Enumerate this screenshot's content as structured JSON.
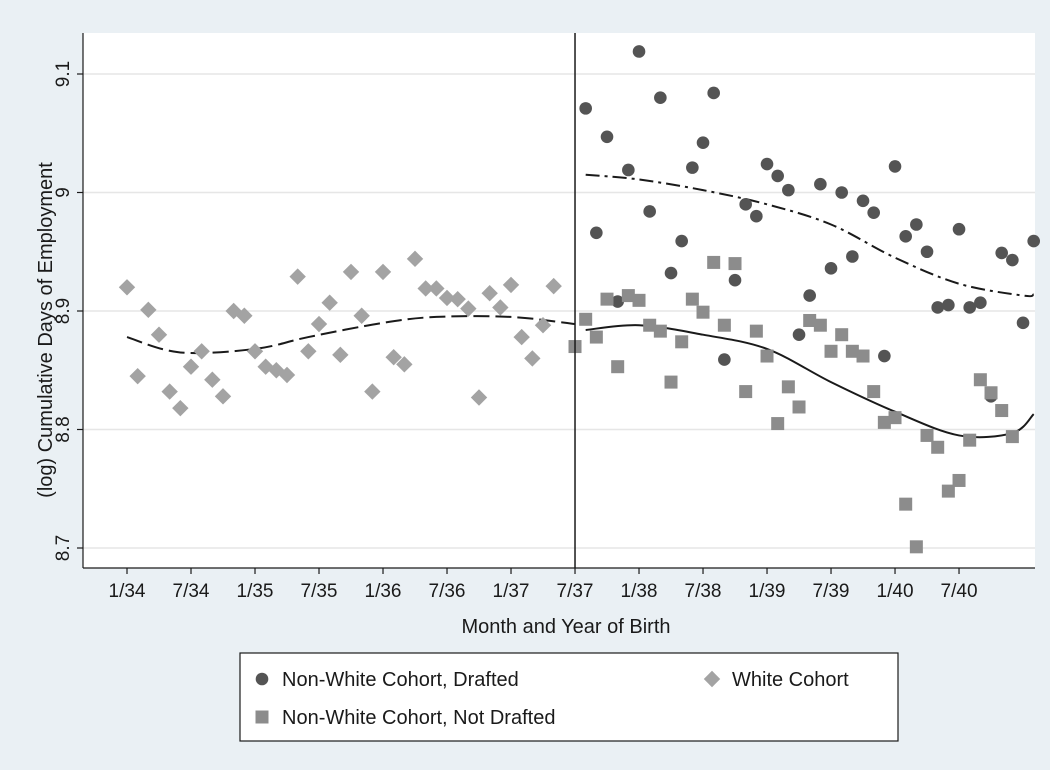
{
  "chart_data": {
    "type": "scatter",
    "xlabel": "Month and Year of Birth",
    "ylabel": "(log) Cumulative Days of Employment",
    "x_ticks": [
      "1/34",
      "7/34",
      "1/35",
      "7/35",
      "1/36",
      "7/36",
      "1/37",
      "7/37",
      "1/38",
      "7/38",
      "1/39",
      "7/39",
      "1/40",
      "7/40"
    ],
    "y_ticks": [
      "8.7",
      "8.8",
      "8.9",
      "9",
      "9.1"
    ],
    "ylim": [
      8.69,
      9.13
    ],
    "xlim": [
      "1933-12",
      "1941-03"
    ],
    "grid": true,
    "cutoff_line": "1937-07",
    "legend_position": "bottom",
    "series": [
      {
        "name": "Non-White Cohort, Drafted",
        "marker": "circle",
        "color": "#545454",
        "points": [
          [
            "1937-08",
            9.071
          ],
          [
            "1937-09",
            8.966
          ],
          [
            "1937-10",
            9.047
          ],
          [
            "1937-11",
            8.908
          ],
          [
            "1937-12",
            9.019
          ],
          [
            "1938-01",
            9.119
          ],
          [
            "1938-02",
            8.984
          ],
          [
            "1938-03",
            9.08
          ],
          [
            "1938-04",
            8.932
          ],
          [
            "1938-05",
            8.959
          ],
          [
            "1938-06",
            9.021
          ],
          [
            "1938-07",
            9.042
          ],
          [
            "1938-08",
            9.084
          ],
          [
            "1938-09",
            8.859
          ],
          [
            "1938-10",
            8.926
          ],
          [
            "1938-11",
            8.99
          ],
          [
            "1938-12",
            8.98
          ],
          [
            "1939-01",
            9.024
          ],
          [
            "1939-02",
            9.014
          ],
          [
            "1939-03",
            9.002
          ],
          [
            "1939-04",
            8.88
          ],
          [
            "1939-05",
            8.913
          ],
          [
            "1939-06",
            9.007
          ],
          [
            "1939-07",
            8.936
          ],
          [
            "1939-08",
            9.0
          ],
          [
            "1939-09",
            8.946
          ],
          [
            "1939-10",
            8.993
          ],
          [
            "1939-11",
            8.983
          ],
          [
            "1939-12",
            8.862
          ],
          [
            "1940-01",
            9.022
          ],
          [
            "1940-02",
            8.963
          ],
          [
            "1940-03",
            8.973
          ],
          [
            "1940-04",
            8.95
          ],
          [
            "1940-05",
            8.903
          ],
          [
            "1940-06",
            8.905
          ],
          [
            "1940-07",
            8.969
          ],
          [
            "1940-08",
            8.903
          ],
          [
            "1940-09",
            8.907
          ],
          [
            "1940-10",
            8.828
          ],
          [
            "1940-11",
            8.949
          ],
          [
            "1940-12",
            8.943
          ],
          [
            "1941-01",
            8.89
          ],
          [
            "1941-02",
            8.959
          ]
        ]
      },
      {
        "name": "Non-White Cohort, Not Drafted",
        "marker": "square",
        "color": "#8c8c8c",
        "points": [
          [
            "1937-07",
            8.87
          ],
          [
            "1937-08",
            8.893
          ],
          [
            "1937-09",
            8.878
          ],
          [
            "1937-10",
            8.91
          ],
          [
            "1937-11",
            8.853
          ],
          [
            "1937-12",
            8.913
          ],
          [
            "1938-01",
            8.909
          ],
          [
            "1938-02",
            8.888
          ],
          [
            "1938-03",
            8.883
          ],
          [
            "1938-04",
            8.84
          ],
          [
            "1938-05",
            8.874
          ],
          [
            "1938-06",
            8.91
          ],
          [
            "1938-07",
            8.899
          ],
          [
            "1938-08",
            8.941
          ],
          [
            "1938-09",
            8.888
          ],
          [
            "1938-10",
            8.94
          ],
          [
            "1938-11",
            8.832
          ],
          [
            "1938-12",
            8.883
          ],
          [
            "1939-01",
            8.862
          ],
          [
            "1939-02",
            8.805
          ],
          [
            "1939-03",
            8.836
          ],
          [
            "1939-04",
            8.819
          ],
          [
            "1939-05",
            8.892
          ],
          [
            "1939-06",
            8.888
          ],
          [
            "1939-07",
            8.866
          ],
          [
            "1939-08",
            8.88
          ],
          [
            "1939-09",
            8.866
          ],
          [
            "1939-10",
            8.862
          ],
          [
            "1939-11",
            8.832
          ],
          [
            "1939-12",
            8.806
          ],
          [
            "1940-01",
            8.81
          ],
          [
            "1940-02",
            8.737
          ],
          [
            "1940-03",
            8.701
          ],
          [
            "1940-04",
            8.795
          ],
          [
            "1940-05",
            8.785
          ],
          [
            "1940-06",
            8.748
          ],
          [
            "1940-07",
            8.757
          ],
          [
            "1940-08",
            8.791
          ],
          [
            "1940-09",
            8.842
          ],
          [
            "1940-10",
            8.831
          ],
          [
            "1940-11",
            8.816
          ],
          [
            "1940-12",
            8.794
          ]
        ]
      },
      {
        "name": "White Cohort",
        "marker": "diamond",
        "color": "#a3a3a3",
        "points": [
          [
            "1934-01",
            8.92
          ],
          [
            "1934-02",
            8.845
          ],
          [
            "1934-03",
            8.901
          ],
          [
            "1934-04",
            8.88
          ],
          [
            "1934-05",
            8.832
          ],
          [
            "1934-06",
            8.818
          ],
          [
            "1934-07",
            8.853
          ],
          [
            "1934-08",
            8.866
          ],
          [
            "1934-09",
            8.842
          ],
          [
            "1934-10",
            8.828
          ],
          [
            "1934-11",
            8.9
          ],
          [
            "1934-12",
            8.896
          ],
          [
            "1935-01",
            8.866
          ],
          [
            "1935-02",
            8.853
          ],
          [
            "1935-03",
            8.85
          ],
          [
            "1935-04",
            8.846
          ],
          [
            "1935-05",
            8.929
          ],
          [
            "1935-06",
            8.866
          ],
          [
            "1935-07",
            8.889
          ],
          [
            "1935-08",
            8.907
          ],
          [
            "1935-09",
            8.863
          ],
          [
            "1935-10",
            8.933
          ],
          [
            "1935-11",
            8.896
          ],
          [
            "1935-12",
            8.832
          ],
          [
            "1936-01",
            8.933
          ],
          [
            "1936-02",
            8.861
          ],
          [
            "1936-03",
            8.855
          ],
          [
            "1936-04",
            8.944
          ],
          [
            "1936-05",
            8.919
          ],
          [
            "1936-06",
            8.919
          ],
          [
            "1936-07",
            8.911
          ],
          [
            "1936-08",
            8.91
          ],
          [
            "1936-09",
            8.902
          ],
          [
            "1936-10",
            8.827
          ],
          [
            "1936-11",
            8.915
          ],
          [
            "1936-12",
            8.903
          ],
          [
            "1937-01",
            8.922
          ],
          [
            "1937-02",
            8.878
          ],
          [
            "1937-03",
            8.86
          ],
          [
            "1937-04",
            8.888
          ],
          [
            "1937-05",
            8.921
          ]
        ]
      }
    ],
    "fit_lines": [
      {
        "for": "White Cohort",
        "style": "dashed",
        "points": [
          [
            "1934-01",
            8.878
          ],
          [
            "1934-06",
            8.865
          ],
          [
            "1935-01",
            8.868
          ],
          [
            "1935-06",
            8.878
          ],
          [
            "1936-01",
            8.89
          ],
          [
            "1936-06",
            8.895
          ],
          [
            "1937-01",
            8.895
          ],
          [
            "1937-07",
            8.889
          ]
        ]
      },
      {
        "for": "Non-White Cohort, Drafted",
        "style": "dash-dot",
        "points": [
          [
            "1937-08",
            9.015
          ],
          [
            "1938-01",
            9.011
          ],
          [
            "1938-07",
            9.002
          ],
          [
            "1939-01",
            8.99
          ],
          [
            "1939-07",
            8.973
          ],
          [
            "1940-01",
            8.945
          ],
          [
            "1940-07",
            8.923
          ],
          [
            "1941-01",
            8.913
          ],
          [
            "1941-02",
            8.914
          ]
        ]
      },
      {
        "for": "Non-White Cohort, Not Drafted",
        "style": "solid",
        "points": [
          [
            "1937-08",
            8.884
          ],
          [
            "1938-01",
            8.888
          ],
          [
            "1938-07",
            8.88
          ],
          [
            "1939-01",
            8.868
          ],
          [
            "1939-07",
            8.84
          ],
          [
            "1940-01",
            8.815
          ],
          [
            "1940-07",
            8.795
          ],
          [
            "1940-12",
            8.797
          ],
          [
            "1941-02",
            8.813
          ]
        ]
      }
    ]
  },
  "legend": {
    "items": [
      {
        "label": "Non-White Cohort, Drafted",
        "marker": "circle",
        "color": "#545454"
      },
      {
        "label": "White Cohort",
        "marker": "diamond",
        "color": "#a3a3a3"
      },
      {
        "label": "Non-White Cohort, Not Drafted",
        "marker": "square",
        "color": "#8c8c8c"
      }
    ]
  }
}
